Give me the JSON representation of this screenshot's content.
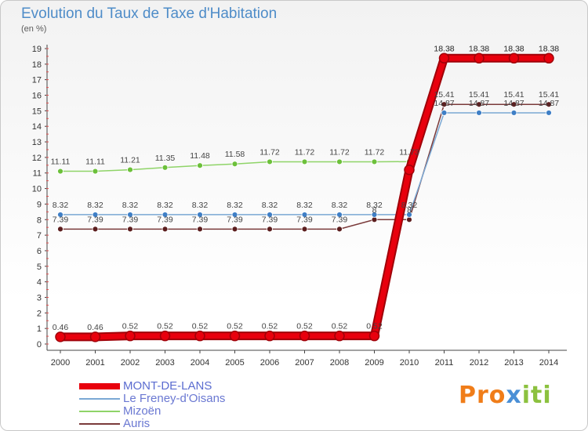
{
  "title": "Evolution du Taux de Taxe d'Habitation",
  "subtitle": "(en %)",
  "logo": {
    "part1": "Pro",
    "part2": "x",
    "part3": "iti"
  },
  "chart_data": {
    "type": "line",
    "title": "Evolution du Taux de Taxe d'Habitation",
    "ylabel": "(en %)",
    "xlabel": "",
    "ylim": [
      0,
      19
    ],
    "yticks": [
      0,
      1,
      2,
      3,
      4,
      5,
      6,
      7,
      8,
      9,
      10,
      11,
      12,
      13,
      14,
      15,
      16,
      17,
      18,
      19
    ],
    "grid": false,
    "legend_position": "bottom-left",
    "x": [
      "2000",
      "2001",
      "2002",
      "2003",
      "2004",
      "2005",
      "2006",
      "2007",
      "2008",
      "2009",
      "2010",
      "2011",
      "2012",
      "2013",
      "2014"
    ],
    "series": [
      {
        "name": "MONT-DE-LANS",
        "color": "#e8000d",
        "marker": "#e8000d",
        "emphasis": true,
        "values": [
          0.46,
          0.46,
          0.52,
          0.52,
          0.52,
          0.52,
          0.52,
          0.52,
          0.52,
          0.52,
          11.2,
          18.38,
          18.38,
          18.38,
          18.38
        ],
        "labels": [
          "0.46",
          "0.46",
          "0.52",
          "0.52",
          "0.52",
          "0.52",
          "0.52",
          "0.52",
          "0.52",
          "0.52",
          "",
          "18.38",
          "18.38",
          "18.38",
          "18.38"
        ]
      },
      {
        "name": "Le Freney-d'Oisans",
        "color": "#7aa8d4",
        "marker": "#3f7fc6",
        "emphasis": false,
        "values": [
          8.32,
          8.32,
          8.32,
          8.32,
          8.32,
          8.32,
          8.32,
          8.32,
          8.32,
          8.32,
          8.32,
          14.87,
          14.87,
          14.87,
          14.87
        ],
        "labels": [
          "8.32",
          "8.32",
          "8.32",
          "8.32",
          "8.32",
          "8.32",
          "8.32",
          "8.32",
          "8.32",
          "8.32",
          "8.32",
          "14.87",
          "14.87",
          "14.87",
          "14.87"
        ]
      },
      {
        "name": "Mizoën",
        "color": "#8fd468",
        "marker": "#6cc03a",
        "emphasis": false,
        "values": [
          11.11,
          11.11,
          11.21,
          11.35,
          11.48,
          11.58,
          11.72,
          11.72,
          11.72,
          11.72,
          11.73,
          18.38,
          18.38,
          18.38,
          18.38
        ],
        "labels": [
          "11.11",
          "11.11",
          "11.21",
          "11.35",
          "11.48",
          "11.58",
          "11.72",
          "11.72",
          "11.72",
          "11.72",
          "11.73",
          "18.38",
          "18.38",
          "18.38",
          "18.38"
        ]
      },
      {
        "name": "Auris",
        "color": "#7a3a3a",
        "marker": "#5c1e1e",
        "emphasis": false,
        "values": [
          7.39,
          7.39,
          7.39,
          7.39,
          7.39,
          7.39,
          7.39,
          7.39,
          7.39,
          8.0,
          8.0,
          15.41,
          15.41,
          15.41,
          15.41
        ],
        "labels": [
          "7.39",
          "7.39",
          "7.39",
          "7.39",
          "7.39",
          "7.39",
          "7.39",
          "7.39",
          "7.39",
          "8",
          "8",
          "15.41",
          "15.41",
          "15.41",
          "15.41"
        ]
      }
    ]
  }
}
